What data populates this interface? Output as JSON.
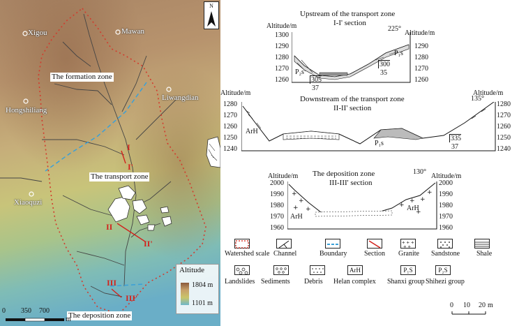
{
  "map": {
    "places": [
      "Xigou",
      "Mawan",
      "Liwangdian",
      "Hongshiliang",
      "Xiaoquzi"
    ],
    "zones": [
      "The formation zone",
      "The transport zone",
      "The deposition zone"
    ],
    "sections": [
      "I",
      "I'",
      "II",
      "II'",
      "III",
      "III'"
    ],
    "north": "N",
    "altitude_title": "Altitude",
    "altitude_max": "1804 m",
    "altitude_min": "1101 m",
    "scale": [
      "0",
      "350",
      "700",
      "m"
    ]
  },
  "section1": {
    "title1": "Upstream of the transport zone",
    "title2": "I-I' section",
    "axis": "Altitude/m",
    "ticks": [
      "1300",
      "1290",
      "1280",
      "1270",
      "1260"
    ],
    "angle": "225°",
    "strike1": "305",
    "dip1": "37",
    "strike2": "300",
    "dip2": "35",
    "unit_left": "P₂s",
    "unit_right": "P₁s"
  },
  "section2": {
    "title1": "Downstream of the transport zone",
    "title2": "II-II' section",
    "axis": "Altitude/m",
    "ticks": [
      "1280",
      "1270",
      "1260",
      "1250",
      "1240"
    ],
    "angle": "135°",
    "strike": "335",
    "dip": "37",
    "unit_left": "ArH",
    "unit_mid": "P₁s"
  },
  "section3": {
    "title1": "The deposition zone",
    "title2": "III-III' section",
    "axis": "Altitude/m",
    "ticks": [
      "2000",
      "1990",
      "1980",
      "1970",
      "1960"
    ],
    "angle": "130°",
    "unit_left": "ArH",
    "unit_right": "ArH"
  },
  "legend": {
    "row1": [
      "Watershed scale",
      "Channel",
      "Boundary",
      "Section",
      "Granite",
      "Sandstone",
      "Shale"
    ],
    "row2": [
      "Landslides",
      "Sediments",
      "Debris",
      "Helan complex",
      "Shanxi  group",
      "Shihezi  group"
    ],
    "helan_code": "ArH",
    "shanxi_code": "P₁S",
    "shihezi_code": "P₂S",
    "scale": [
      "0",
      "10",
      "20",
      "m"
    ]
  }
}
